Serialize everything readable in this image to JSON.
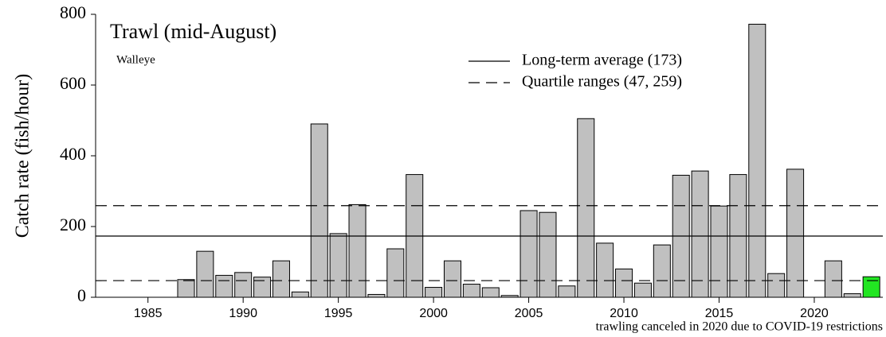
{
  "chart_data": {
    "type": "bar",
    "title": "Trawl (mid-August)",
    "subtitle": "Walleye",
    "y_label": "Catch rate (fish/hour)",
    "annotation": "trawling canceled in 2020 due to COVID-19 restrictions",
    "x": [
      1987,
      1988,
      1989,
      1990,
      1991,
      1992,
      1993,
      1994,
      1995,
      1996,
      1997,
      1998,
      1999,
      2000,
      2001,
      2002,
      2003,
      2004,
      2005,
      2006,
      2007,
      2008,
      2009,
      2010,
      2011,
      2012,
      2013,
      2014,
      2015,
      2016,
      2017,
      2018,
      2019,
      2020,
      2021,
      2022,
      2023
    ],
    "values": [
      50,
      130,
      62,
      70,
      57,
      103,
      15,
      490,
      180,
      262,
      8,
      137,
      347,
      28,
      103,
      37,
      27,
      5,
      245,
      240,
      32,
      505,
      153,
      80,
      40,
      148,
      345,
      357,
      258,
      347,
      772,
      67,
      362,
      null,
      103,
      10,
      58
    ],
    "colors": [
      "#c0c0c0",
      "#c0c0c0",
      "#c0c0c0",
      "#c0c0c0",
      "#c0c0c0",
      "#c0c0c0",
      "#c0c0c0",
      "#c0c0c0",
      "#c0c0c0",
      "#c0c0c0",
      "#c0c0c0",
      "#c0c0c0",
      "#c0c0c0",
      "#c0c0c0",
      "#c0c0c0",
      "#c0c0c0",
      "#c0c0c0",
      "#c0c0c0",
      "#c0c0c0",
      "#c0c0c0",
      "#c0c0c0",
      "#c0c0c0",
      "#c0c0c0",
      "#c0c0c0",
      "#c0c0c0",
      "#c0c0c0",
      "#c0c0c0",
      "#c0c0c0",
      "#c0c0c0",
      "#c0c0c0",
      "#c0c0c0",
      "#c0c0c0",
      "#c0c0c0",
      "#c0c0c0",
      "#c0c0c0",
      "#c0c0c0",
      "#22e622"
    ],
    "reference_lines": [
      {
        "name": "Long-term average (173)",
        "value": 173,
        "style": "solid"
      },
      {
        "name": "Quartile ranges (47, 259)",
        "values": [
          47,
          259
        ],
        "style": "dashed"
      }
    ],
    "xlim": [
      1982.25,
      2023.6
    ],
    "xticks": [
      1985,
      1990,
      1995,
      2000,
      2005,
      2010,
      2015,
      2020
    ],
    "ylim": [
      0,
      800
    ],
    "yticks": [
      0,
      200,
      400,
      600,
      800
    ]
  }
}
